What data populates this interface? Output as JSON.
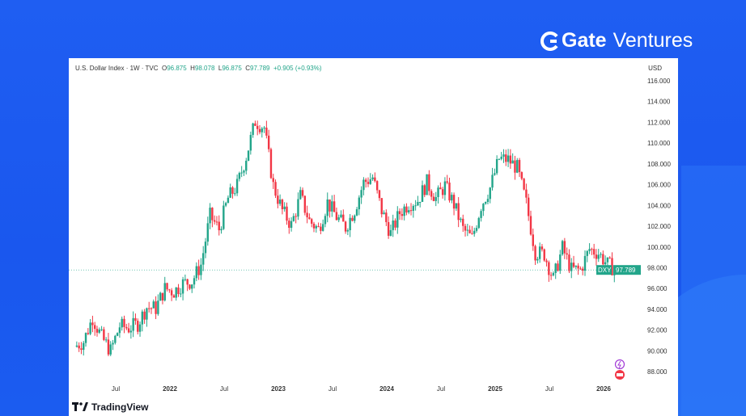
{
  "brand": {
    "logo_mark": "G",
    "name_bold": "Gate",
    "name_light": "Ventures"
  },
  "legend": {
    "title": "U.S. Dollar Index · 1W · TVC",
    "o_label": "O",
    "o": "96.875",
    "h_label": "H",
    "h": "98.078",
    "l_label": "L",
    "l": "96.875",
    "c_label": "C",
    "c": "97.789",
    "change": "+0.905 (+0.93%)"
  },
  "axis_unit": "USD",
  "footer": {
    "tradingview": "TradingView"
  },
  "colors": {
    "up": "#22a58a",
    "down": "#f23645",
    "background": "#1a57ee"
  },
  "chart_data": {
    "type": "candlestick",
    "title": "U.S. Dollar Index · 1W · TVC",
    "ylabel": "USD",
    "ylim": [
      87,
      117
    ],
    "yticks": [
      "116.000",
      "114.000",
      "112.000",
      "110.000",
      "108.000",
      "106.000",
      "104.000",
      "102.000",
      "100.000",
      "98.000",
      "96.000",
      "94.000",
      "92.000",
      "90.000",
      "88.000"
    ],
    "xticks": [
      {
        "label": "Jul",
        "t": 2021.5
      },
      {
        "label": "2022",
        "t": 2022.0
      },
      {
        "label": "Jul",
        "t": 2022.5
      },
      {
        "label": "2023",
        "t": 2023.0
      },
      {
        "label": "Jul",
        "t": 2023.5
      },
      {
        "label": "2024",
        "t": 2024.0
      },
      {
        "label": "Jul",
        "t": 2024.5
      },
      {
        "label": "2025",
        "t": 2025.0
      },
      {
        "label": "Jul",
        "t": 2025.5
      },
      {
        "label": "2026",
        "t": 2026.0
      }
    ],
    "start": 2021.12,
    "monthly_closes": [
      90.9,
      93.2,
      91.3,
      90.0,
      92.4,
      92.2,
      92.6,
      94.2,
      94.1,
      96.0,
      95.7,
      96.5,
      96.7,
      98.3,
      103.0,
      101.7,
      104.7,
      105.9,
      108.7,
      112.1,
      111.5,
      105.9,
      103.5,
      102.1,
      104.9,
      102.5,
      101.7,
      104.3,
      102.9,
      101.9,
      103.6,
      106.2,
      106.7,
      103.5,
      101.3,
      103.3,
      104.2,
      104.5,
      106.2,
      104.7,
      105.9,
      104.1,
      101.7,
      100.8,
      104.0,
      105.7,
      108.5,
      108.4,
      107.6,
      104.2,
      99.5,
      99.3,
      96.9,
      99.9,
      97.8,
      97.8,
      99.8,
      99.4,
      98.3,
      97.8
    ],
    "last_price": {
      "symbol": "DXY",
      "value": "97.789"
    }
  }
}
